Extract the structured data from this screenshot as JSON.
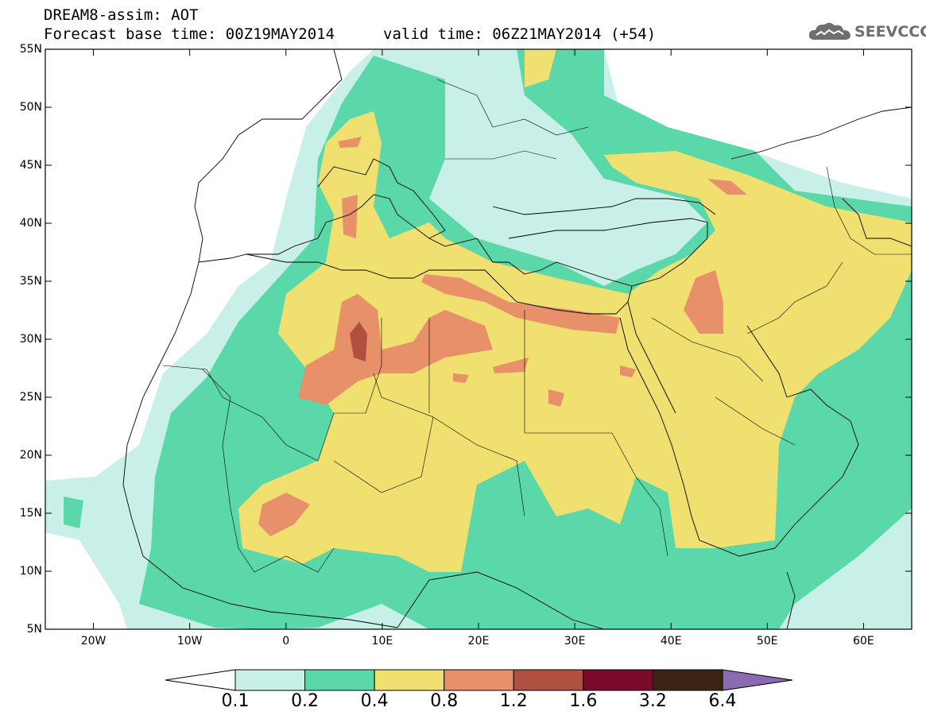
{
  "header": {
    "title_line1": "DREAM8-assim: AOT",
    "title_line2": "Forecast base time: 00Z19MAY2014",
    "valid_time": "valid time: 06Z21MAY2014 (+54)",
    "logo_text": "SEEVCCC"
  },
  "map": {
    "lat_labels": [
      "55N",
      "50N",
      "45N",
      "40N",
      "35N",
      "30N",
      "25N",
      "20N",
      "15N",
      "10N",
      "5N"
    ],
    "lon_labels": [
      "20W",
      "10W",
      "0",
      "10E",
      "20E",
      "30E",
      "40E",
      "50E",
      "60E"
    ],
    "lat_range": [
      5,
      55
    ],
    "lon_range": [
      -25,
      65
    ]
  },
  "legend": {
    "labels": [
      "0.1",
      "0.2",
      "0.4",
      "0.8",
      "1.2",
      "1.6",
      "3.2",
      "6.4"
    ],
    "colors": [
      "#ffffff",
      "#c8f0e8",
      "#5ad8aa",
      "#f0e070",
      "#e8906a",
      "#b05040",
      "#7a0a2a",
      "#3d2414",
      "#8a6ab0"
    ]
  }
}
